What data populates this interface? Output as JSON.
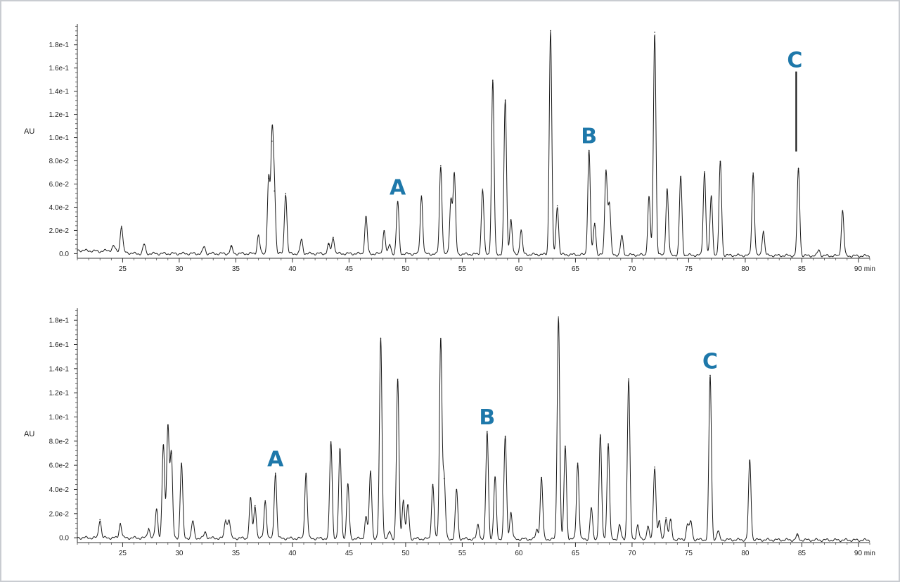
{
  "colors": {
    "annotation": "#1e78aa",
    "trace": "#1a1a1a",
    "axis": "#333333"
  },
  "chart_data": [
    {
      "type": "line",
      "ylabel": "AU",
      "x_unit": "min",
      "xlim": [
        21,
        91
      ],
      "ylim": [
        -0.004,
        0.198
      ],
      "x_ticks": [
        {
          "value": 25,
          "label": "25"
        },
        {
          "value": 30,
          "label": "30"
        },
        {
          "value": 35,
          "label": "35"
        },
        {
          "value": 40,
          "label": "40"
        },
        {
          "value": 45,
          "label": "45"
        },
        {
          "value": 50,
          "label": "50"
        },
        {
          "value": 55,
          "label": "55"
        },
        {
          "value": 60,
          "label": "60"
        },
        {
          "value": 65,
          "label": "65"
        },
        {
          "value": 70,
          "label": "70"
        },
        {
          "value": 75,
          "label": "75"
        },
        {
          "value": 80,
          "label": "80"
        },
        {
          "value": 85,
          "label": "85"
        },
        {
          "value": 90,
          "label": "90 min"
        }
      ],
      "y_ticks": [
        {
          "value": 0.0,
          "label": "0.0"
        },
        {
          "value": 0.02,
          "label": "2.0e-2"
        },
        {
          "value": 0.04,
          "label": "4.0e-2"
        },
        {
          "value": 0.06,
          "label": "6.0e-2"
        },
        {
          "value": 0.08,
          "label": "8.0e-2"
        },
        {
          "value": 0.1,
          "label": "1.0e-1"
        },
        {
          "value": 0.12,
          "label": "1.2e-1"
        },
        {
          "value": 0.14,
          "label": "1.4e-1"
        },
        {
          "value": 0.16,
          "label": "1.6e-1"
        },
        {
          "value": 0.18,
          "label": "1.8e-1"
        }
      ],
      "baseline": [
        [
          21,
          0.003
        ],
        [
          23,
          0.002
        ],
        [
          24,
          0.003
        ],
        [
          26,
          0.0
        ],
        [
          45,
          0.0
        ],
        [
          91,
          -0.002
        ]
      ],
      "peaks": [
        [
          24.2,
          0.004
        ],
        [
          24.9,
          0.022
        ],
        [
          26.9,
          0.008
        ],
        [
          32.2,
          0.006
        ],
        [
          34.6,
          0.006
        ],
        [
          37.0,
          0.016
        ],
        [
          37.9,
          0.065
        ],
        [
          38.2,
          0.097
        ],
        [
          38.4,
          0.054
        ],
        [
          39.4,
          0.052
        ],
        [
          40.8,
          0.012
        ],
        [
          43.2,
          0.008
        ],
        [
          43.6,
          0.014
        ],
        [
          46.5,
          0.032
        ],
        [
          48.1,
          0.02
        ],
        [
          48.6,
          0.008
        ],
        [
          49.3,
          0.045
        ],
        [
          51.4,
          0.05
        ],
        [
          53.1,
          0.076
        ],
        [
          54.0,
          0.047
        ],
        [
          54.3,
          0.069
        ],
        [
          56.8,
          0.056
        ],
        [
          57.7,
          0.15
        ],
        [
          58.8,
          0.133
        ],
        [
          59.3,
          0.03
        ],
        [
          60.2,
          0.021
        ],
        [
          62.8,
          0.193
        ],
        [
          63.4,
          0.042
        ],
        [
          66.2,
          0.09
        ],
        [
          66.7,
          0.027
        ],
        [
          67.7,
          0.073
        ],
        [
          68.0,
          0.044
        ],
        [
          69.1,
          0.016
        ],
        [
          71.5,
          0.05
        ],
        [
          72.0,
          0.192
        ],
        [
          73.1,
          0.057
        ],
        [
          74.3,
          0.068
        ],
        [
          76.4,
          0.072
        ],
        [
          77.0,
          0.051
        ],
        [
          77.8,
          0.081
        ],
        [
          80.7,
          0.071
        ],
        [
          81.6,
          0.021
        ],
        [
          84.7,
          0.075
        ],
        [
          86.5,
          0.005
        ],
        [
          88.6,
          0.039
        ]
      ],
      "annotations": [
        {
          "text": "A",
          "x": 49.3,
          "y": 0.045
        },
        {
          "text": "B",
          "x": 66.2,
          "y": 0.09
        },
        {
          "text": "C",
          "x": 84.5,
          "y": 0.157,
          "marker_line": [
            0.088,
            0.157
          ]
        }
      ]
    },
    {
      "type": "line",
      "ylabel": "AU",
      "x_unit": "min",
      "xlim": [
        21,
        91
      ],
      "ylim": [
        -0.004,
        0.19
      ],
      "x_ticks": [
        {
          "value": 25,
          "label": "25"
        },
        {
          "value": 30,
          "label": "30"
        },
        {
          "value": 35,
          "label": "35"
        },
        {
          "value": 40,
          "label": "40"
        },
        {
          "value": 45,
          "label": "45"
        },
        {
          "value": 50,
          "label": "50"
        },
        {
          "value": 55,
          "label": "55"
        },
        {
          "value": 60,
          "label": "60"
        },
        {
          "value": 65,
          "label": "65"
        },
        {
          "value": 70,
          "label": "70"
        },
        {
          "value": 75,
          "label": "75"
        },
        {
          "value": 80,
          "label": "80"
        },
        {
          "value": 85,
          "label": "85"
        },
        {
          "value": 90,
          "label": "90 min"
        }
      ],
      "y_ticks": [
        {
          "value": 0.0,
          "label": "0.0"
        },
        {
          "value": 0.02,
          "label": "2.0e-2"
        },
        {
          "value": 0.04,
          "label": "4.0e-2"
        },
        {
          "value": 0.06,
          "label": "6.0e-2"
        },
        {
          "value": 0.08,
          "label": "8.0e-2"
        },
        {
          "value": 0.1,
          "label": "1.0e-1"
        },
        {
          "value": 0.12,
          "label": "1.2e-1"
        },
        {
          "value": 0.14,
          "label": "1.4e-1"
        },
        {
          "value": 0.16,
          "label": "1.6e-1"
        },
        {
          "value": 0.18,
          "label": "1.8e-1"
        }
      ],
      "baseline": [
        [
          21,
          0.0
        ],
        [
          91,
          -0.002
        ]
      ],
      "peaks": [
        [
          23.0,
          0.015
        ],
        [
          24.8,
          0.012
        ],
        [
          27.3,
          0.008
        ],
        [
          28.0,
          0.024
        ],
        [
          28.6,
          0.077
        ],
        [
          29.0,
          0.093
        ],
        [
          29.3,
          0.07
        ],
        [
          30.2,
          0.062
        ],
        [
          31.2,
          0.014
        ],
        [
          32.3,
          0.005
        ],
        [
          34.1,
          0.015
        ],
        [
          34.4,
          0.015
        ],
        [
          36.3,
          0.033
        ],
        [
          36.7,
          0.027
        ],
        [
          37.6,
          0.031
        ],
        [
          38.5,
          0.054
        ],
        [
          41.2,
          0.054
        ],
        [
          43.4,
          0.08
        ],
        [
          44.2,
          0.074
        ],
        [
          44.9,
          0.045
        ],
        [
          46.5,
          0.018
        ],
        [
          46.9,
          0.056
        ],
        [
          47.8,
          0.166
        ],
        [
          48.6,
          0.006
        ],
        [
          49.3,
          0.132
        ],
        [
          49.8,
          0.032
        ],
        [
          50.2,
          0.028
        ],
        [
          52.4,
          0.045
        ],
        [
          53.1,
          0.166
        ],
        [
          53.4,
          0.05
        ],
        [
          54.5,
          0.041
        ],
        [
          56.4,
          0.012
        ],
        [
          57.2,
          0.089
        ],
        [
          57.9,
          0.051
        ],
        [
          58.8,
          0.085
        ],
        [
          59.3,
          0.022
        ],
        [
          61.6,
          0.008
        ],
        [
          62.0,
          0.051
        ],
        [
          63.5,
          0.184
        ],
        [
          64.1,
          0.077
        ],
        [
          65.2,
          0.063
        ],
        [
          66.4,
          0.026
        ],
        [
          67.2,
          0.086
        ],
        [
          67.9,
          0.079
        ],
        [
          68.9,
          0.012
        ],
        [
          69.7,
          0.133
        ],
        [
          70.5,
          0.012
        ],
        [
          71.4,
          0.011
        ],
        [
          72.0,
          0.06
        ],
        [
          72.4,
          0.015
        ],
        [
          73.0,
          0.018
        ],
        [
          73.4,
          0.016
        ],
        [
          74.9,
          0.013
        ],
        [
          75.2,
          0.015
        ],
        [
          76.9,
          0.136
        ],
        [
          77.6,
          0.007
        ],
        [
          80.4,
          0.066
        ],
        [
          84.6,
          0.004
        ]
      ],
      "annotations": [
        {
          "text": "A",
          "x": 38.5,
          "y": 0.054
        },
        {
          "text": "B",
          "x": 57.2,
          "y": 0.089
        },
        {
          "text": "C",
          "x": 76.9,
          "y": 0.136
        }
      ]
    }
  ]
}
